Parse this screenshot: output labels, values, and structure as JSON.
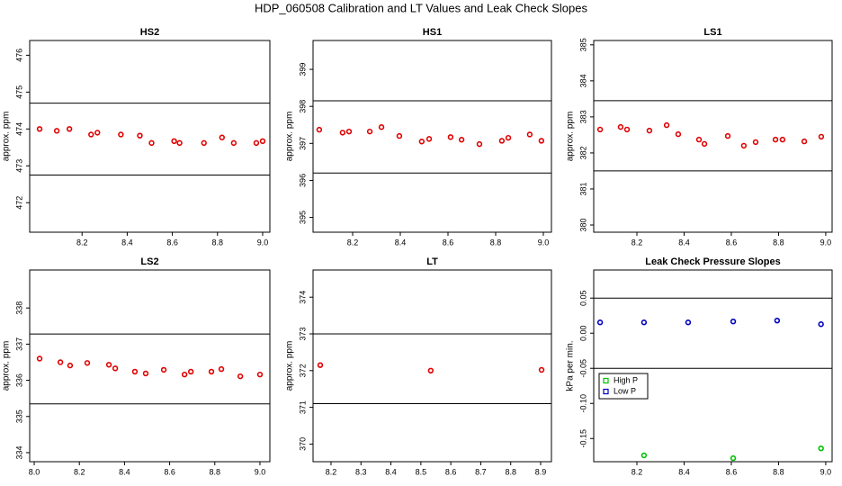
{
  "title": "HDP_060508  Calibration and LT Values and Leak Check Slopes",
  "chart_data": [
    {
      "type": "scatter",
      "title": "HS2",
      "ylabel": "approx. ppm",
      "xlim": [
        7.968,
        9.032
      ],
      "ylim": [
        471.2,
        476.4
      ],
      "xticks": [
        8.2,
        8.4,
        8.6,
        8.8,
        {
          "value": 9,
          "label": "9.0"
        }
      ],
      "yticks": [
        472,
        473,
        474,
        475,
        476
      ],
      "ref_lines": [
        474.7,
        472.75
      ],
      "series": [
        {
          "color": "#e00000",
          "x": [
            8.012,
            8.088,
            8.144,
            8.24,
            8.268,
            8.372,
            8.456,
            8.508,
            8.608,
            8.632,
            8.74,
            8.82,
            8.872,
            8.972,
            9.0
          ],
          "values": [
            474.0,
            473.95,
            474.0,
            473.85,
            473.9,
            473.85,
            473.82,
            473.62,
            473.67,
            473.62,
            473.62,
            473.77,
            473.62,
            473.62,
            473.67
          ]
        }
      ]
    },
    {
      "type": "scatter",
      "title": "HS1",
      "ylabel": "approx. ppm",
      "xlim": [
        8.034,
        9.034
      ],
      "ylim": [
        394.6,
        399.78
      ],
      "xticks": [
        8.2,
        8.4,
        8.6,
        8.8,
        {
          "value": 9,
          "label": "9.0"
        }
      ],
      "yticks": [
        395,
        396,
        397,
        398,
        399
      ],
      "ref_lines": [
        398.15,
        396.2
      ],
      "series": [
        {
          "color": "#e00000",
          "x": [
            8.06,
            8.158,
            8.185,
            8.272,
            8.321,
            8.396,
            8.49,
            8.521,
            8.611,
            8.657,
            8.732,
            8.826,
            8.853,
            8.943,
            8.992
          ],
          "values": [
            397.37,
            397.29,
            397.32,
            397.32,
            397.44,
            397.2,
            397.05,
            397.12,
            397.17,
            397.1,
            396.98,
            397.07,
            397.15,
            397.24,
            397.07
          ]
        }
      ]
    },
    {
      "type": "scatter",
      "title": "LS1",
      "ylabel": "approx. ppm",
      "xlim": [
        8.017,
        9.027
      ],
      "ylim": [
        379.8,
        385.12
      ],
      "xticks": [
        8.2,
        8.4,
        8.6,
        8.8,
        {
          "value": 9,
          "label": "9.0"
        }
      ],
      "yticks": [
        380,
        381,
        382,
        383,
        384,
        385
      ],
      "ref_lines": [
        383.45,
        381.5
      ],
      "series": [
        {
          "color": "#e00000",
          "x": [
            8.044,
            8.131,
            8.158,
            8.253,
            8.326,
            8.375,
            8.463,
            8.486,
            8.585,
            8.653,
            8.703,
            8.787,
            8.817,
            8.909,
            8.981
          ],
          "values": [
            382.65,
            382.72,
            382.65,
            382.62,
            382.77,
            382.52,
            382.37,
            382.25,
            382.47,
            382.2,
            382.3,
            382.37,
            382.37,
            382.32,
            382.45
          ]
        }
      ]
    },
    {
      "type": "scatter",
      "title": "LS2",
      "ylabel": "approx. ppm",
      "xlim": [
        7.98,
        9.044
      ],
      "ylim": [
        333.75,
        339.05
      ],
      "xticks": [
        {
          "value": 8,
          "label": "8.0"
        },
        8.2,
        8.4,
        8.6,
        8.8,
        {
          "value": 9,
          "label": "9.0"
        }
      ],
      "yticks": [
        334,
        335,
        336,
        337,
        338
      ],
      "ref_lines": [
        337.28,
        335.35
      ],
      "series": [
        {
          "color": "#e00000",
          "x": [
            8.024,
            8.116,
            8.159,
            8.235,
            8.331,
            8.359,
            8.446,
            8.494,
            8.574,
            8.666,
            8.694,
            8.785,
            8.829,
            8.913,
            9.0
          ],
          "values": [
            336.6,
            336.5,
            336.41,
            336.48,
            336.43,
            336.33,
            336.24,
            336.19,
            336.29,
            336.16,
            336.24,
            336.24,
            336.31,
            336.11,
            336.16
          ]
        }
      ]
    },
    {
      "type": "scatter",
      "title": "LT",
      "ylabel": "approx. ppm",
      "xlim": [
        8.14,
        8.936
      ],
      "ylim": [
        369.52,
        374.74
      ],
      "xticks": [
        8.2,
        8.3,
        8.4,
        8.5,
        8.6,
        8.7,
        8.8,
        8.9
      ],
      "yticks": [
        370,
        371,
        372,
        373,
        374
      ],
      "ref_lines": [
        373.0,
        371.1
      ],
      "series": [
        {
          "color": "#e00000",
          "x": [
            8.164,
            8.533,
            8.903
          ],
          "values": [
            372.15,
            372.0,
            372.02
          ]
        }
      ]
    },
    {
      "type": "scatter",
      "title": "Leak Check Pressure Slopes",
      "ylabel": "kPa per min.",
      "xlim": [
        8.017,
        9.027
      ],
      "ylim": [
        -0.183,
        0.09
      ],
      "xticks": [
        8.2,
        8.4,
        8.6,
        8.8,
        {
          "value": 9,
          "label": "9.0"
        }
      ],
      "yticks": [
        -0.15,
        {
          "value": -0.1,
          "label": "-0.10"
        },
        -0.05,
        {
          "value": 0,
          "label": "0.00"
        },
        0.05
      ],
      "ref_lines": [
        0.05,
        -0.05
      ],
      "legend": "left",
      "series": [
        {
          "name": "High P",
          "color": "#00c000",
          "x": [
            8.23,
            8.608,
            8.98
          ],
          "values": [
            -0.174,
            -0.178,
            -0.164
          ]
        },
        {
          "name": "Low P",
          "color": "#0000c0",
          "x": [
            8.044,
            8.23,
            8.417,
            8.608,
            8.794,
            8.98
          ],
          "values": [
            0.0154,
            0.0154,
            0.0154,
            0.0167,
            0.018,
            0.0128
          ]
        }
      ]
    }
  ]
}
